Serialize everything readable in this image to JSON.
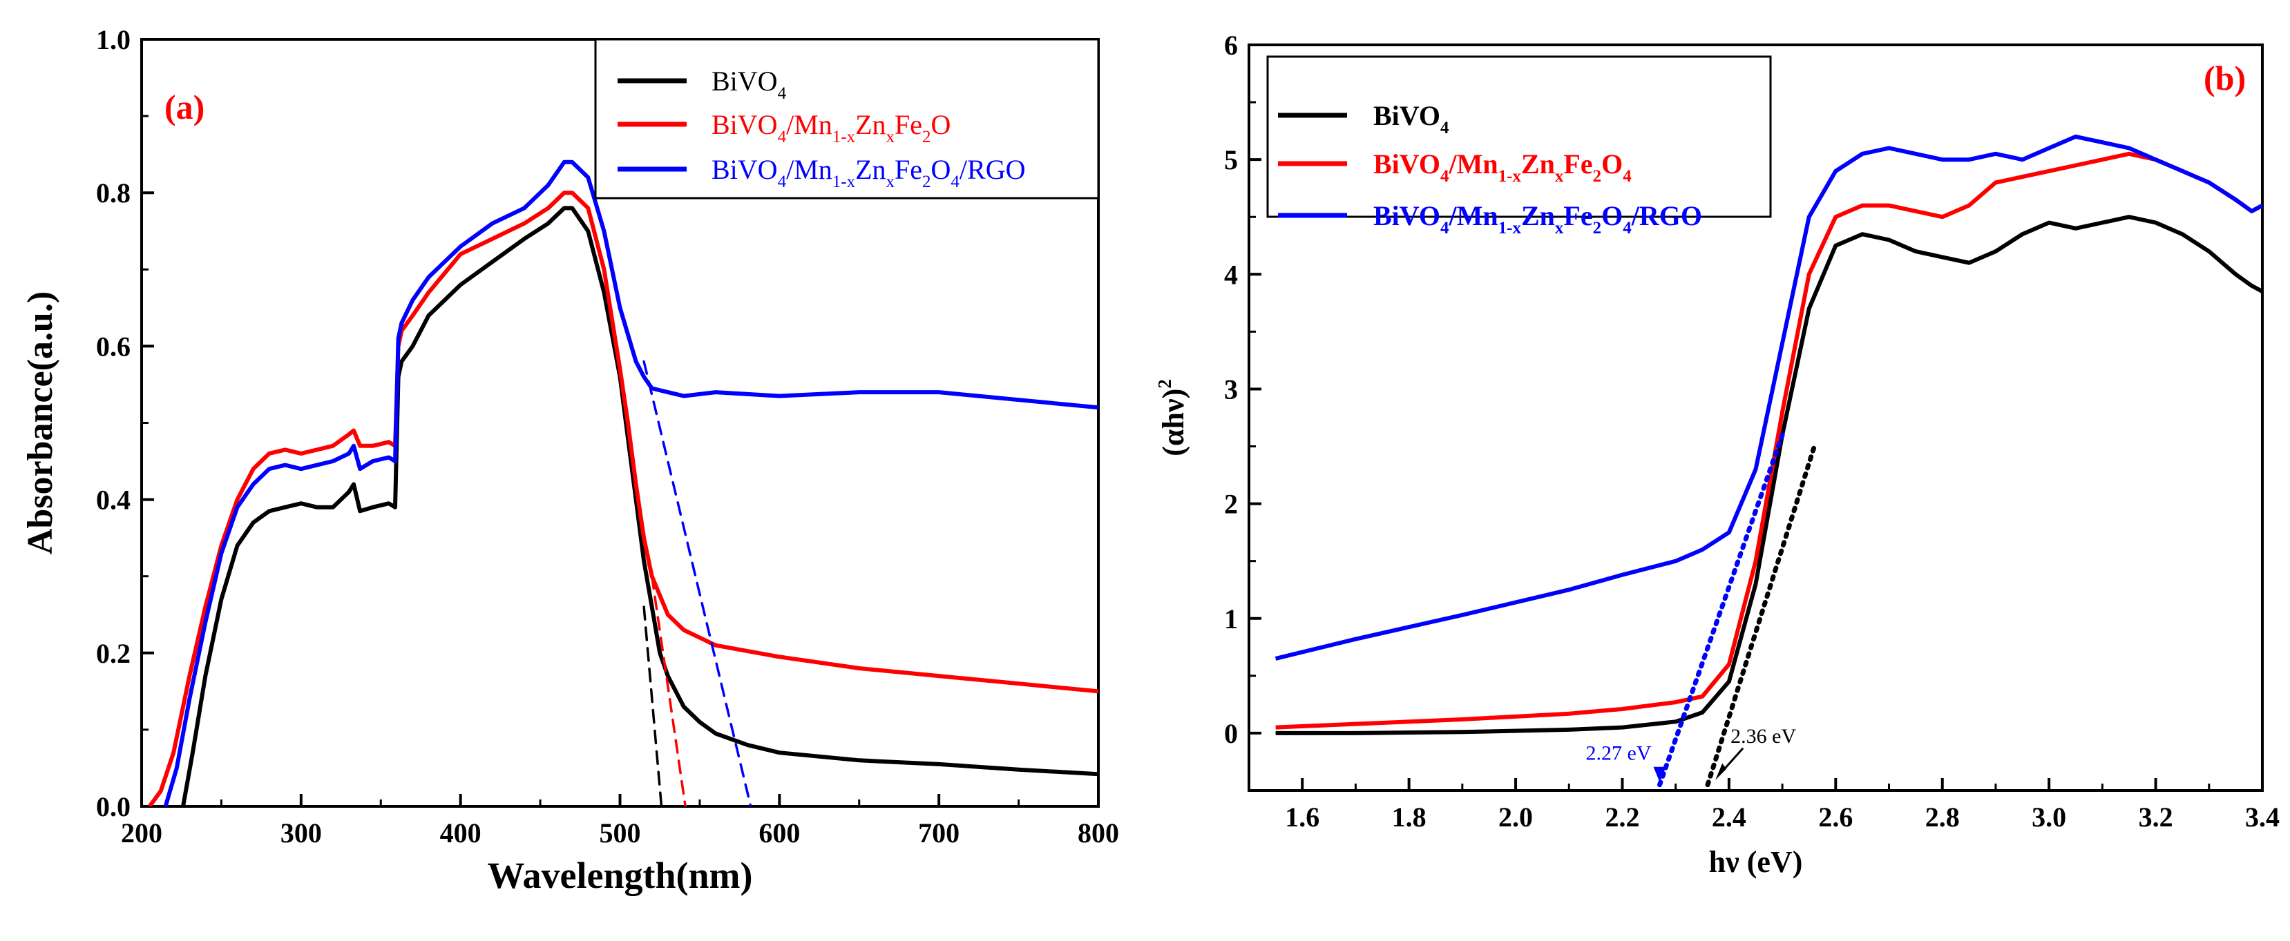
{
  "chart_data": [
    {
      "type": "line",
      "panel_label": "(a)",
      "xlabel": "Wavelength(nm)",
      "ylabel": "Absorbance(a.u.)",
      "xlim": [
        200,
        800
      ],
      "ylim": [
        0.0,
        1.0
      ],
      "xticks": [
        200,
        300,
        400,
        500,
        600,
        700,
        800
      ],
      "yticks": [
        0.0,
        0.2,
        0.4,
        0.6,
        0.8,
        1.0
      ],
      "xtick_labels": [
        "200",
        "300",
        "400",
        "500",
        "600",
        "700",
        "800"
      ],
      "ytick_labels": [
        "0.0",
        "0.2",
        "0.4",
        "0.6",
        "0.8",
        "1.0"
      ],
      "legend_position": "top-right",
      "series": [
        {
          "name": "BiVO4",
          "legend_base": "BiVO",
          "legend_parts": [
            [
              "BiVO",
              ""
            ],
            [
              "4",
              "sub"
            ]
          ],
          "color": "#000000",
          "x": [
            226,
            232,
            240,
            250,
            260,
            270,
            280,
            290,
            300,
            310,
            320,
            330,
            333,
            337,
            345,
            355,
            359,
            361,
            363,
            370,
            380,
            400,
            420,
            440,
            455,
            465,
            470,
            480,
            490,
            500,
            505,
            510,
            515,
            520,
            525,
            530,
            540,
            550,
            560,
            580,
            600,
            650,
            700,
            750,
            800
          ],
          "y": [
            0.0,
            0.07,
            0.17,
            0.27,
            0.34,
            0.37,
            0.385,
            0.39,
            0.395,
            0.39,
            0.39,
            0.41,
            0.42,
            0.385,
            0.39,
            0.395,
            0.39,
            0.56,
            0.58,
            0.6,
            0.64,
            0.68,
            0.71,
            0.74,
            0.76,
            0.78,
            0.78,
            0.75,
            0.67,
            0.56,
            0.48,
            0.4,
            0.32,
            0.26,
            0.2,
            0.17,
            0.13,
            0.11,
            0.095,
            0.08,
            0.07,
            0.06,
            0.055,
            0.048,
            0.042
          ]
        },
        {
          "name": "BiVO4/Mn1-xZnxFe2O",
          "legend_base": "BiVO4/Mn1-xZnxFe2O",
          "legend_parts": [
            [
              "BiVO",
              ""
            ],
            [
              "4",
              "sub"
            ],
            [
              "/Mn",
              ""
            ],
            [
              "1-x",
              "sub"
            ],
            [
              "Zn",
              ""
            ],
            [
              "x",
              "sub"
            ],
            [
              "Fe",
              ""
            ],
            [
              "2",
              "sub"
            ],
            [
              "O",
              ""
            ]
          ],
          "color": "#ff0000",
          "x": [
            205,
            212,
            220,
            230,
            240,
            250,
            260,
            270,
            280,
            290,
            300,
            310,
            320,
            330,
            333,
            337,
            345,
            355,
            359,
            361,
            363,
            370,
            380,
            400,
            420,
            440,
            455,
            465,
            470,
            480,
            490,
            500,
            505,
            510,
            515,
            520,
            530,
            540,
            560,
            600,
            650,
            700,
            750,
            800
          ],
          "y": [
            0.0,
            0.02,
            0.07,
            0.17,
            0.26,
            0.34,
            0.4,
            0.44,
            0.46,
            0.465,
            0.46,
            0.465,
            0.47,
            0.485,
            0.49,
            0.47,
            0.47,
            0.475,
            0.47,
            0.6,
            0.62,
            0.64,
            0.67,
            0.72,
            0.74,
            0.76,
            0.78,
            0.8,
            0.8,
            0.78,
            0.7,
            0.57,
            0.5,
            0.42,
            0.35,
            0.3,
            0.25,
            0.23,
            0.21,
            0.195,
            0.18,
            0.17,
            0.16,
            0.15
          ]
        },
        {
          "name": "BiVO4/Mn1-xZnxFe2O4/RGO",
          "legend_base": "BiVO4/Mn1-xZnxFe2O4/RGO",
          "legend_parts": [
            [
              "BiVO",
              ""
            ],
            [
              "4",
              "sub"
            ],
            [
              "/Mn",
              ""
            ],
            [
              "1-x",
              "sub"
            ],
            [
              "Zn",
              ""
            ],
            [
              "x",
              "sub"
            ],
            [
              "Fe",
              ""
            ],
            [
              "2",
              "sub"
            ],
            [
              "O",
              ""
            ],
            [
              "4",
              "sub"
            ],
            [
              "/RGO",
              ""
            ]
          ],
          "color": "#0000ff",
          "x": [
            215,
            222,
            230,
            240,
            250,
            260,
            270,
            280,
            290,
            300,
            310,
            320,
            330,
            333,
            337,
            345,
            355,
            359,
            361,
            363,
            370,
            380,
            400,
            420,
            440,
            455,
            465,
            470,
            480,
            490,
            500,
            510,
            515,
            520,
            530,
            540,
            560,
            600,
            650,
            700,
            750,
            800
          ],
          "y": [
            0.0,
            0.05,
            0.14,
            0.24,
            0.33,
            0.39,
            0.42,
            0.44,
            0.445,
            0.44,
            0.445,
            0.45,
            0.46,
            0.47,
            0.44,
            0.45,
            0.455,
            0.45,
            0.61,
            0.63,
            0.66,
            0.69,
            0.73,
            0.76,
            0.78,
            0.81,
            0.84,
            0.84,
            0.82,
            0.75,
            0.65,
            0.58,
            0.56,
            0.545,
            0.54,
            0.535,
            0.54,
            0.535,
            0.54,
            0.54,
            0.53,
            0.52
          ]
        }
      ],
      "extrapolation_lines": [
        {
          "series": "BiVO4",
          "color": "#000000",
          "style": "dashed",
          "x": [
            515,
            526
          ],
          "y": [
            0.26,
            0.0
          ]
        },
        {
          "series": "BiVO4/Mn1-xZnxFe2O",
          "color": "#ff0000",
          "style": "dashed",
          "x": [
            520,
            541
          ],
          "y": [
            0.3,
            0.0
          ]
        },
        {
          "series": "BiVO4/Mn1-xZnxFe2O4/RGO",
          "color": "#0000ff",
          "style": "dashed",
          "x": [
            515,
            582
          ],
          "y": [
            0.58,
            0.0
          ]
        }
      ]
    },
    {
      "type": "line",
      "panel_label": "(b)",
      "xlabel": "hν (eV)",
      "ylabel_parts": [
        [
          "(αhν)",
          ""
        ],
        [
          "2",
          "sup"
        ]
      ],
      "xlim": [
        1.5,
        3.4
      ],
      "ylim": [
        -0.5,
        6
      ],
      "xticks": [
        1.6,
        1.8,
        2.0,
        2.2,
        2.4,
        2.6,
        2.8,
        3.0,
        3.2,
        3.4
      ],
      "yticks": [
        0,
        1,
        2,
        3,
        4,
        5,
        6
      ],
      "xtick_labels": [
        "1.6",
        "1.8",
        "2.0",
        "2.2",
        "2.4",
        "2.6",
        "2.8",
        "3.0",
        "3.2",
        "3.4"
      ],
      "ytick_labels": [
        "0",
        "1",
        "2",
        "3",
        "4",
        "5",
        "6"
      ],
      "legend_position": "top-left",
      "series": [
        {
          "name": "BiVO4",
          "legend_parts": [
            [
              "BiVO",
              ""
            ],
            [
              "4",
              "sub"
            ]
          ],
          "color": "#000000",
          "x": [
            1.55,
            1.7,
            1.9,
            2.1,
            2.2,
            2.3,
            2.35,
            2.4,
            2.45,
            2.5,
            2.55,
            2.6,
            2.65,
            2.7,
            2.75,
            2.8,
            2.85,
            2.9,
            2.95,
            3.0,
            3.05,
            3.1,
            3.15,
            3.2,
            3.25,
            3.3,
            3.35,
            3.38,
            3.4
          ],
          "y": [
            0.0,
            0.0,
            0.01,
            0.03,
            0.05,
            0.1,
            0.18,
            0.45,
            1.3,
            2.6,
            3.7,
            4.25,
            4.35,
            4.3,
            4.2,
            4.15,
            4.1,
            4.2,
            4.35,
            4.45,
            4.4,
            4.45,
            4.5,
            4.45,
            4.35,
            4.2,
            4.0,
            3.9,
            3.85
          ]
        },
        {
          "name": "BiVO4/Mn1-xZnxFe2O4",
          "legend_parts": [
            [
              "BiVO",
              ""
            ],
            [
              "4",
              "sub"
            ],
            [
              "/Mn",
              ""
            ],
            [
              "1-x",
              "sub"
            ],
            [
              "Zn",
              ""
            ],
            [
              "x",
              "sub"
            ],
            [
              "Fe",
              ""
            ],
            [
              "2",
              "sub"
            ],
            [
              "O",
              ""
            ],
            [
              "4",
              "sub"
            ]
          ],
          "color": "#ff0000",
          "x": [
            1.55,
            1.7,
            1.9,
            2.1,
            2.2,
            2.3,
            2.35,
            2.4,
            2.45,
            2.5,
            2.55,
            2.6,
            2.65,
            2.7,
            2.75,
            2.8,
            2.85,
            2.9,
            2.95,
            3.0,
            3.05,
            3.1,
            3.15,
            3.2,
            3.25,
            3.3,
            3.35,
            3.38,
            3.4
          ],
          "y": [
            0.05,
            0.08,
            0.12,
            0.17,
            0.21,
            0.27,
            0.32,
            0.6,
            1.5,
            2.8,
            4.0,
            4.5,
            4.6,
            4.6,
            4.55,
            4.5,
            4.6,
            4.8,
            4.85,
            4.9,
            4.95,
            5.0,
            5.05,
            5.0,
            4.9,
            4.8,
            4.65,
            4.55,
            4.6
          ]
        },
        {
          "name": "BiVO4/Mn1-xZnxFe2O4/RGO",
          "legend_parts": [
            [
              "BiVO",
              ""
            ],
            [
              "4",
              "sub"
            ],
            [
              "/Mn",
              ""
            ],
            [
              "1-x",
              "sub"
            ],
            [
              "Zn",
              ""
            ],
            [
              "x",
              "sub"
            ],
            [
              "Fe",
              ""
            ],
            [
              "2",
              "sub"
            ],
            [
              "O",
              ""
            ],
            [
              "4",
              "sub"
            ],
            [
              "/RGO",
              ""
            ]
          ],
          "color": "#0000ff",
          "x": [
            1.55,
            1.7,
            1.9,
            2.1,
            2.2,
            2.3,
            2.35,
            2.4,
            2.45,
            2.5,
            2.55,
            2.6,
            2.65,
            2.7,
            2.75,
            2.8,
            2.85,
            2.9,
            2.95,
            3.0,
            3.05,
            3.1,
            3.15,
            3.2,
            3.25,
            3.3,
            3.35,
            3.38,
            3.4
          ],
          "y": [
            0.65,
            0.82,
            1.03,
            1.25,
            1.38,
            1.5,
            1.6,
            1.75,
            2.3,
            3.4,
            4.5,
            4.9,
            5.05,
            5.1,
            5.05,
            5.0,
            5.0,
            5.05,
            5.0,
            5.1,
            5.2,
            5.15,
            5.1,
            5.0,
            4.9,
            4.8,
            4.65,
            4.55,
            4.6
          ]
        }
      ],
      "extrapolation_lines": [
        {
          "color": "#0000ff",
          "style": "dotted",
          "x": [
            2.27,
            2.5
          ],
          "y": [
            -0.45,
            2.6
          ]
        },
        {
          "color": "#000000",
          "style": "dotted",
          "x": [
            2.36,
            2.56
          ],
          "y": [
            -0.45,
            2.5
          ]
        }
      ],
      "annotations": [
        {
          "text": "2.27 eV",
          "color": "#0000ff",
          "x": 2.27,
          "y": -0.45,
          "arrow": "down"
        },
        {
          "text": "2.36 eV",
          "color": "#000000",
          "x": 2.39,
          "y": -0.3,
          "arrow": "down-left"
        }
      ]
    }
  ]
}
